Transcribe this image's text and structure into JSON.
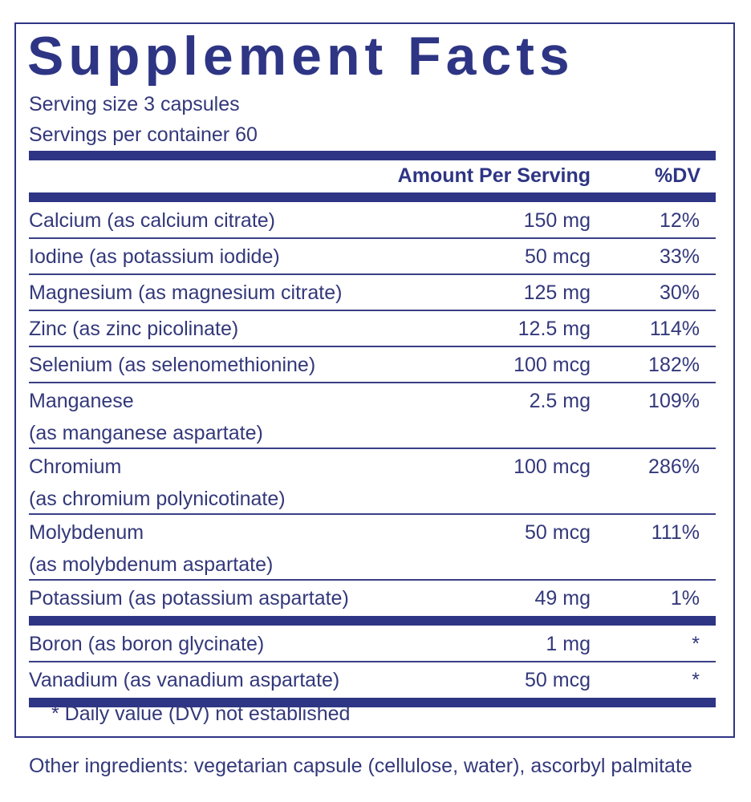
{
  "title": "Supplement Facts",
  "serving_size": "Serving size  3 capsules",
  "servings_per_container": "Servings per container  60",
  "header": {
    "amount": "Amount Per Serving",
    "dv": "%DV"
  },
  "sections": [
    [
      {
        "name_lines": [
          "Calcium (as calcium citrate)"
        ],
        "amount": "150 mg",
        "dv": "12%"
      },
      {
        "name_lines": [
          "Iodine (as potassium iodide)"
        ],
        "amount": "50 mcg",
        "dv": "33%"
      },
      {
        "name_lines": [
          "Magnesium (as magnesium citrate)"
        ],
        "amount": "125 mg",
        "dv": "30%"
      },
      {
        "name_lines": [
          "Zinc (as zinc picolinate)"
        ],
        "amount": "12.5 mg",
        "dv": "114%"
      },
      {
        "name_lines": [
          "Selenium (as selenomethionine)"
        ],
        "amount": "100 mcg",
        "dv": "182%"
      },
      {
        "name_lines": [
          "Manganese",
          "(as manganese aspartate)"
        ],
        "amount": "2.5 mg",
        "dv": "109%"
      },
      {
        "name_lines": [
          "Chromium",
          "(as chromium polynicotinate)"
        ],
        "amount": "100 mcg",
        "dv": "286%"
      },
      {
        "name_lines": [
          "Molybdenum",
          "(as molybdenum aspartate)"
        ],
        "amount": "50 mcg",
        "dv": "111%"
      },
      {
        "name_lines": [
          "Potassium (as potassium aspartate)"
        ],
        "amount": "49 mg",
        "dv": "1%"
      }
    ],
    [
      {
        "name_lines": [
          "Boron (as boron glycinate)"
        ],
        "amount": "1 mg",
        "dv": "*"
      },
      {
        "name_lines": [
          "Vanadium (as vanadium aspartate)"
        ],
        "amount": "50 mcg",
        "dv": "*"
      }
    ]
  ],
  "footnote": "* Daily value (DV) not established",
  "other_ingredients": "Other ingredients: vegetarian capsule (cellulose, water), ascorbyl palmitate"
}
